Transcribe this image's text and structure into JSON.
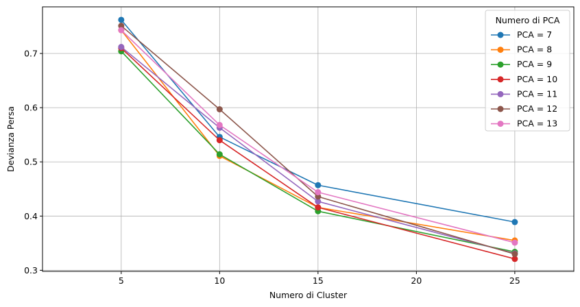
{
  "chart_data": {
    "type": "line",
    "title": "",
    "xlabel": "Numero di Cluster",
    "ylabel": "Devianza Persa",
    "xlim": [
      1,
      28
    ],
    "ylim": [
      0.298,
      0.786
    ],
    "xticks": [
      5,
      10,
      15,
      20,
      25
    ],
    "yticks": [
      0.3,
      0.4,
      0.5,
      0.6,
      0.7
    ],
    "ytick_labels": [
      "0.3",
      "0.4",
      "0.5",
      "0.6",
      "0.7"
    ],
    "grid": true,
    "legend": {
      "title": "Numero di PCA",
      "placement": "top-right"
    },
    "x": [
      5,
      10,
      15,
      25
    ],
    "series": [
      {
        "name": "PCA = 7",
        "color": "#1f77b4",
        "values": [
          0.762,
          0.546,
          0.457,
          0.389
        ]
      },
      {
        "name": "PCA = 8",
        "color": "#ff7f0e",
        "values": [
          0.743,
          0.511,
          0.416,
          0.355
        ]
      },
      {
        "name": "PCA = 9",
        "color": "#2ca02c",
        "values": [
          0.704,
          0.514,
          0.409,
          0.334
        ]
      },
      {
        "name": "PCA = 10",
        "color": "#d62728",
        "values": [
          0.71,
          0.54,
          0.416,
          0.321
        ]
      },
      {
        "name": "PCA = 11",
        "color": "#9467bd",
        "values": [
          0.712,
          0.563,
          0.427,
          0.331
        ]
      },
      {
        "name": "PCA = 12",
        "color": "#8c564b",
        "values": [
          0.751,
          0.597,
          0.436,
          0.33
        ]
      },
      {
        "name": "PCA = 13",
        "color": "#e377c2",
        "values": [
          0.743,
          0.568,
          0.444,
          0.351
        ]
      }
    ]
  }
}
